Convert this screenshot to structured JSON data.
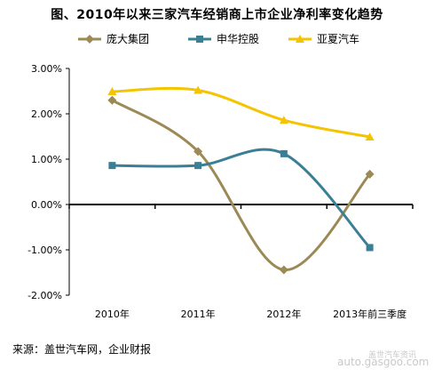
{
  "title": "图、2010年以来三家汽车经销商上市企业净利率变化趋势",
  "source_note": "来源：盖世汽车网，企业财报",
  "watermark": {
    "site": "auto.gasgoo.com",
    "tagline": "盖世汽车资讯"
  },
  "chart_data": {
    "type": "line",
    "title": "图、2010年以来三家汽车经销商上市企业净利率变化趋势",
    "categories": [
      "2010年",
      "2011年",
      "2012年",
      "2013年前三季度"
    ],
    "y_ticks": [
      "3.00%",
      "2.00%",
      "1.00%",
      "0.00%",
      "-1.00%",
      "-2.00%"
    ],
    "y_tick_values": [
      3,
      2,
      1,
      0,
      -1,
      -2
    ],
    "ylim": [
      -2,
      3
    ],
    "unit": "%",
    "grid": false,
    "smooth": true,
    "legend_position": "top",
    "series": [
      {
        "name": "庞大集团",
        "values": [
          2.3,
          1.17,
          -1.44,
          0.67
        ],
        "color": "#9b8a55",
        "marker": "diamond"
      },
      {
        "name": "申华控股",
        "values": [
          0.86,
          0.86,
          1.12,
          -0.95
        ],
        "color": "#3a7f96",
        "marker": "square"
      },
      {
        "name": "亚夏汽车",
        "values": [
          2.49,
          2.52,
          1.86,
          1.49
        ],
        "color": "#f5c400",
        "marker": "triangle"
      }
    ]
  }
}
